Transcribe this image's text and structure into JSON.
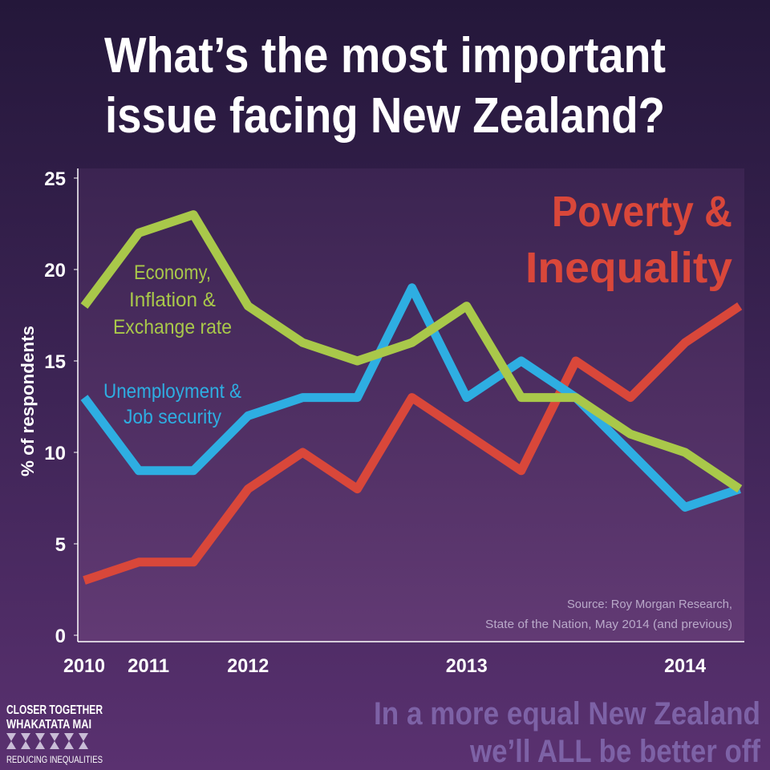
{
  "chart_data": {
    "type": "line",
    "title_lines": [
      "What’s the most important",
      "issue facing New Zealand?"
    ],
    "y_label": "% of respondents",
    "categories": [
      "2010",
      "2011",
      null,
      "2012",
      null,
      null,
      null,
      "2013",
      null,
      null,
      null,
      "2014",
      null
    ],
    "series": [
      {
        "name_lines": [
          "Poverty &",
          "Inequality"
        ],
        "color": "#d9473a",
        "values": [
          3,
          4,
          4,
          8,
          10,
          8,
          13,
          11,
          9,
          15,
          13,
          16,
          18
        ]
      },
      {
        "name_lines": [
          "Unemployment &",
          "Job security"
        ],
        "color": "#2eaee2",
        "values": [
          13,
          9,
          9,
          12,
          13,
          13,
          19,
          13,
          15,
          13,
          10,
          7,
          8
        ]
      },
      {
        "name_lines": [
          "Economy,",
          "Inflation &",
          "Exchange rate"
        ],
        "color": "#a9c84a",
        "values": [
          18,
          22,
          23,
          18,
          16,
          15,
          16,
          18,
          13,
          13,
          11,
          10,
          8
        ]
      }
    ],
    "ylim": [
      0,
      25
    ],
    "yticks": [
      0,
      5,
      10,
      15,
      20,
      25
    ],
    "source_lines": [
      "Source: Roy Morgan Research,",
      "State of the Nation, May 2014 (and previous)"
    ],
    "footer_lines": [
      "In a more equal New Zealand",
      "we’ll ALL be better off"
    ],
    "logo_lines": [
      "CLOSER TOGETHER",
      "WHAKATATA MAI",
      "REDUCING INEQUALITIES"
    ]
  }
}
